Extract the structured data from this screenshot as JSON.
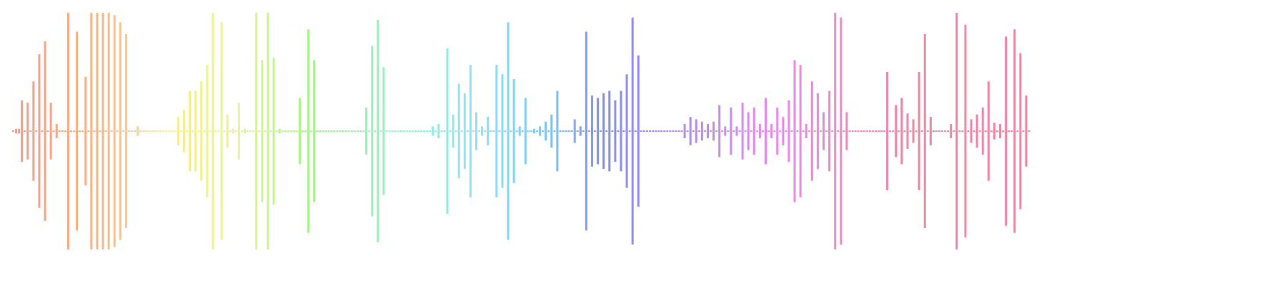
{
  "waveform": {
    "style": "rainbow-audio-waveform",
    "opacity": 0.72,
    "gradient_stops": [
      {
        "at": 0.0,
        "color": "#ec7058"
      },
      {
        "at": 0.09,
        "color": "#f59a52"
      },
      {
        "at": 0.15,
        "color": "#fde264"
      },
      {
        "at": 0.22,
        "color": "#d8f55c"
      },
      {
        "at": 0.3,
        "color": "#75ec5a"
      },
      {
        "at": 0.38,
        "color": "#63f0b8"
      },
      {
        "at": 0.46,
        "color": "#5ad8f2"
      },
      {
        "at": 0.53,
        "color": "#4aa4f0"
      },
      {
        "at": 0.58,
        "color": "#4f5ee8"
      },
      {
        "at": 0.66,
        "color": "#8d5ce8"
      },
      {
        "at": 0.75,
        "color": "#e059e6"
      },
      {
        "at": 0.87,
        "color": "#e8557e"
      }
    ],
    "amplitudes": [
      0.005,
      0.02,
      0.02,
      0.26,
      0.005,
      0.24,
      0.005,
      0.42,
      0.005,
      0.65,
      0.005,
      0.76,
      0.005,
      0.24,
      0.005,
      0.06,
      0.005,
      0.005,
      0.005,
      1.0,
      0.005,
      0.005,
      0.84,
      0.005,
      0.005,
      0.46,
      0.005,
      1.0,
      0.005,
      1.0,
      0.005,
      1.0,
      0.005,
      1.0,
      0.005,
      0.98,
      0.005,
      0.92,
      0.005,
      0.82,
      0.005,
      0.005,
      0.005,
      0.04,
      0.002,
      0.002,
      0.002,
      0.002,
      0.002,
      0.002,
      0.002,
      0.002,
      0.002,
      0.002,
      0.002,
      0.002,
      0.002,
      0.12,
      0.005,
      0.18,
      0.005,
      0.34,
      0.005,
      0.34,
      0.005,
      0.42,
      0.005,
      0.56,
      0.005,
      1.0,
      0.005,
      0.005,
      0.92,
      0.005,
      0.14,
      0.005,
      0.02,
      0.005,
      0.24,
      0.005,
      0.02,
      0.005,
      0.005,
      0.005,
      1.0,
      0.005,
      0.6,
      0.005,
      1.0,
      0.005,
      0.62,
      0.005,
      0.02,
      0.002,
      0.002,
      0.002,
      0.002,
      0.002,
      0.005,
      0.28,
      0.005,
      0.005,
      0.86,
      0.005,
      0.6,
      0.005,
      0.002,
      0.002,
      0.002,
      0.002,
      0.002,
      0.002,
      0.002,
      0.002,
      0.002,
      0.002,
      0.002,
      0.002,
      0.002,
      0.002,
      0.002,
      0.002,
      0.2,
      0.005,
      0.72,
      0.005,
      0.94,
      0.005,
      0.54,
      0.005,
      0.002,
      0.002,
      0.002,
      0.002,
      0.002,
      0.002,
      0.002,
      0.002,
      0.002,
      0.002,
      0.002,
      0.002,
      0.002,
      0.002,
      0.005,
      0.04,
      0.005,
      0.06,
      0.005,
      0.005,
      0.7,
      0.005,
      0.14,
      0.005,
      0.4,
      0.005,
      0.32,
      0.005,
      0.56,
      0.005,
      0.16,
      0.005,
      0.04,
      0.005,
      0.12,
      0.005,
      0.005,
      0.56,
      0.005,
      0.48,
      0.005,
      0.92,
      0.005,
      0.44,
      0.005,
      0.04,
      0.005,
      0.28,
      0.005,
      0.005,
      0.02,
      0.005,
      0.04,
      0.005,
      0.08,
      0.005,
      0.14,
      0.005,
      0.34,
      0.002,
      0.002,
      0.002,
      0.002,
      0.002,
      0.1,
      0.005,
      0.04,
      0.005,
      0.84,
      0.005,
      0.3,
      0.005,
      0.28,
      0.005,
      0.32,
      0.005,
      0.34,
      0.005,
      0.26,
      0.005,
      0.34,
      0.005,
      0.48,
      0.005,
      0.96,
      0.005,
      0.64,
      0.002,
      0.002,
      0.002,
      0.002,
      0.002,
      0.002,
      0.002,
      0.002,
      0.002,
      0.002,
      0.002,
      0.002,
      0.002,
      0.002,
      0.005,
      0.06,
      0.005,
      0.12,
      0.005,
      0.1,
      0.005,
      0.08,
      0.005,
      0.06,
      0.005,
      0.08,
      0.005,
      0.22,
      0.005,
      0.04,
      0.005,
      0.2,
      0.005,
      0.04,
      0.005,
      0.24,
      0.005,
      0.16,
      0.005,
      0.2,
      0.005,
      0.06,
      0.005,
      0.28,
      0.005,
      0.06,
      0.005,
      0.2,
      0.005,
      0.12,
      0.005,
      0.26,
      0.005,
      0.6,
      0.005,
      0.56,
      0.005,
      0.06,
      0.005,
      0.42,
      0.005,
      0.32,
      0.005,
      0.16,
      0.005,
      0.34,
      0.005,
      1.0,
      0.005,
      0.96,
      0.005,
      0.16,
      0.002,
      0.002,
      0.002,
      0.002,
      0.002,
      0.002,
      0.002,
      0.002,
      0.002,
      0.002,
      0.002,
      0.002,
      0.005,
      0.5,
      0.005,
      0.005,
      0.22,
      0.005,
      0.28,
      0.005,
      0.15,
      0.005,
      0.1,
      0.005,
      0.5,
      0.005,
      0.82,
      0.005,
      0.12,
      0.002,
      0.002,
      0.002,
      0.002,
      0.002,
      0.005,
      0.06,
      0.005,
      1.0,
      0.005,
      0.005,
      0.9,
      0.005,
      0.1,
      0.005,
      0.14,
      0.005,
      0.2,
      0.005,
      0.42,
      0.005,
      0.07,
      0.005,
      0.06,
      0.005,
      0.8,
      0.005,
      0.005,
      0.86,
      0.005,
      0.66,
      0.005,
      0.3,
      0.005
    ]
  }
}
